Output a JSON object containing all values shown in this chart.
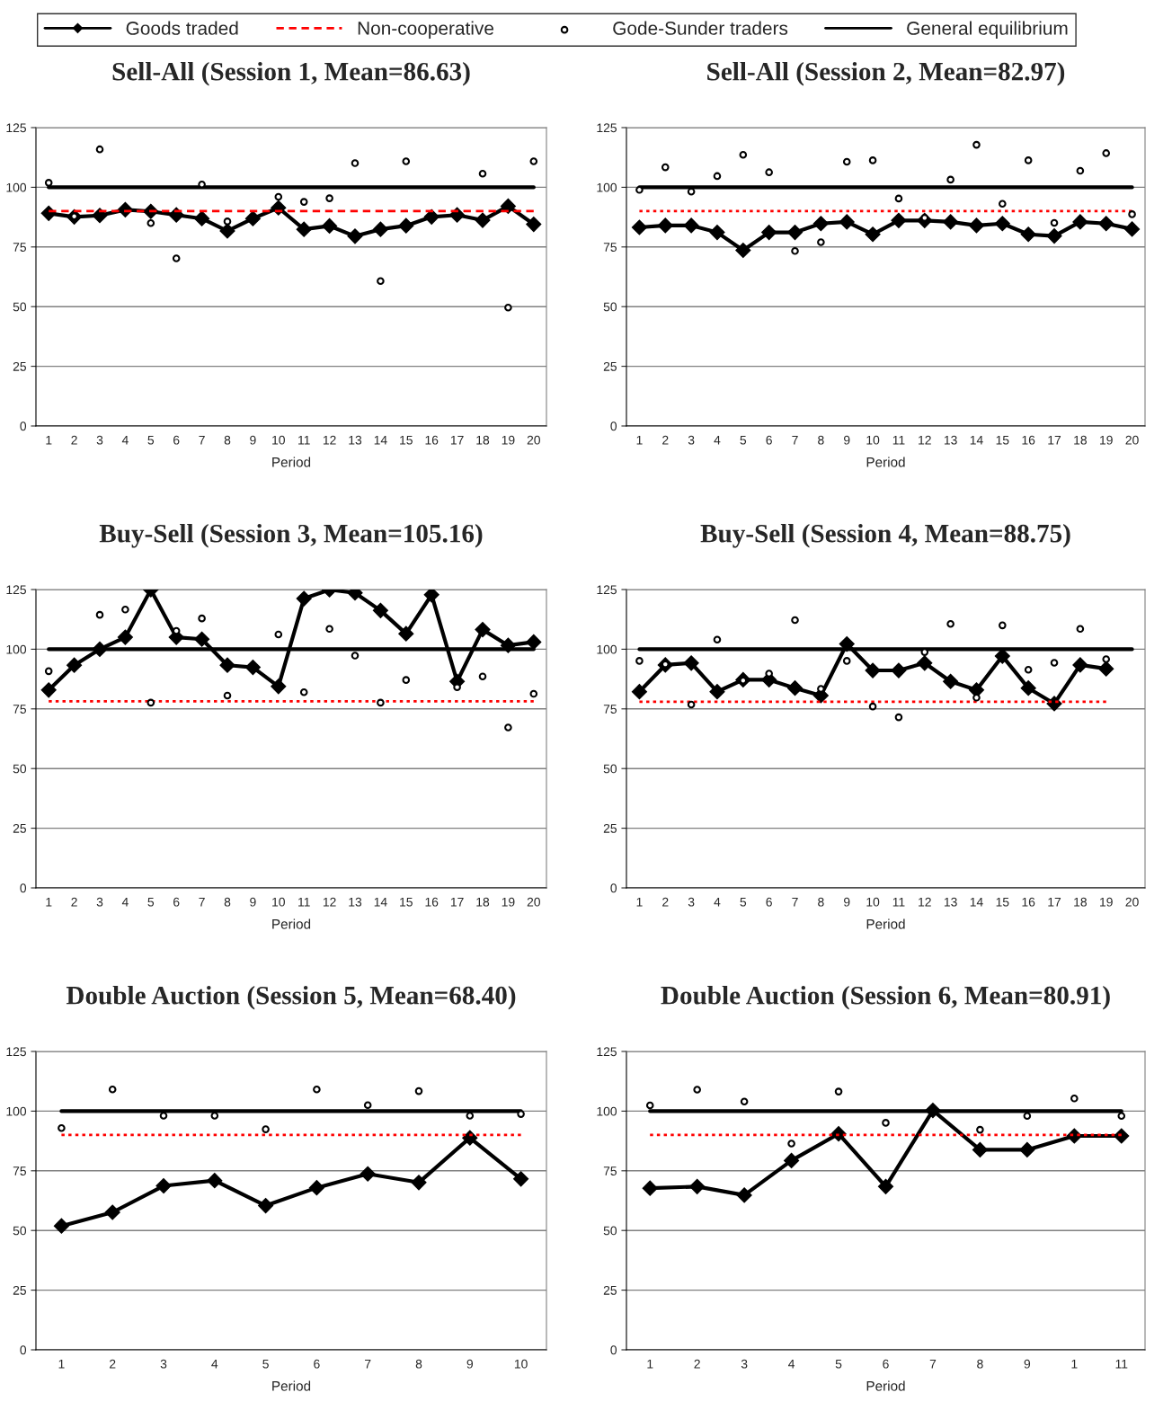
{
  "chart_data": [
    {
      "type": "line",
      "title": "Sell-All (Session 1, Mean=86.63)",
      "xlabel": "Period",
      "categories": [
        "1",
        "2",
        "3",
        "4",
        "5",
        "6",
        "7",
        "8",
        "9",
        "10",
        "11",
        "12",
        "13",
        "14",
        "15",
        "16",
        "17",
        "18",
        "19",
        "20"
      ],
      "ylim": [
        0,
        125
      ],
      "yticks": [
        0,
        25,
        50,
        75,
        100,
        125
      ],
      "grid": "y",
      "legend": "top",
      "series": [
        {
          "name": "Goods traded",
          "color": "#000000",
          "marker": "diamond",
          "line_style": "solid",
          "values": [
            89.1,
            87.6,
            88.2,
            90.6,
            89.9,
            88.4,
            86.9,
            81.7,
            86.9,
            91.4,
            82.4,
            83.8,
            79.5,
            82.4,
            83.9,
            87.6,
            88.4,
            86.2,
            92.1,
            84.5
          ]
        },
        {
          "name": "Non-cooperative",
          "color": "#ff0000",
          "marker": "none",
          "line_style": "dashed",
          "values": [
            90,
            90,
            90,
            90,
            90,
            90,
            90,
            90,
            90,
            90,
            90,
            90,
            90,
            90,
            90,
            90,
            90,
            90,
            90,
            90
          ]
        },
        {
          "name": "Gode-Sunder traders",
          "type": "scatter",
          "color": "#000000",
          "marker": "circle",
          "values": [
            101.9,
            87.8,
            115.9,
            null,
            85,
            70.2,
            101.2,
            85.7,
            null,
            96,
            93.9,
            95.4,
            110.1,
            60.7,
            110.9,
            null,
            null,
            105.7,
            49.6,
            110.9
          ]
        },
        {
          "name": "General equilibrium",
          "color": "#000000",
          "marker": "none",
          "line_style": "solid",
          "values": [
            100,
            100,
            100,
            100,
            100,
            100,
            100,
            100,
            100,
            100,
            100,
            100,
            100,
            100,
            100,
            100,
            100,
            100,
            100,
            100
          ]
        }
      ]
    },
    {
      "type": "line",
      "title": "Sell-All (Session 2, Mean=82.97)",
      "xlabel": "Period",
      "categories": [
        "1",
        "2",
        "3",
        "4",
        "5",
        "6",
        "7",
        "8",
        "9",
        "10",
        "11",
        "12",
        "13",
        "14",
        "15",
        "16",
        "17",
        "18",
        "19",
        "20"
      ],
      "ylim": [
        0,
        125
      ],
      "yticks": [
        0,
        25,
        50,
        75,
        100,
        125
      ],
      "grid": "y",
      "series": [
        {
          "type": "line",
          "color": "#000000",
          "marker": "diamond",
          "line_style": "solid",
          "values": [
            83.2,
            84,
            84,
            81.1,
            73.6,
            81.1,
            81.1,
            84.8,
            85.5,
            80.3,
            86.1,
            86.1,
            85.5,
            84,
            84.8,
            80.3,
            79.6,
            85.5,
            84.8,
            82.5
          ]
        },
        {
          "type": "line",
          "color": "#ff0000",
          "marker": "none",
          "line_style": "dotted",
          "values": [
            90,
            90,
            90,
            90,
            90,
            90,
            90,
            90,
            90,
            90,
            90,
            90,
            90,
            90,
            90,
            90,
            90,
            90,
            90,
            90
          ]
        },
        {
          "type": "scatter",
          "color": "#000000",
          "marker": "circle",
          "values": [
            98.9,
            108.4,
            98.2,
            104.7,
            113.6,
            106.3,
            73.3,
            77,
            110.7,
            111.3,
            95.3,
            87.2,
            103.2,
            117.8,
            93.1,
            111.3,
            85.1,
            106.9,
            114.3,
            88.7
          ]
        },
        {
          "type": "line",
          "color": "#000000",
          "marker": "none",
          "line_style": "solid",
          "values": [
            100,
            100,
            100,
            100,
            100,
            100,
            100,
            100,
            100,
            100,
            100,
            100,
            100,
            100,
            100,
            100,
            100,
            100,
            100,
            100
          ]
        }
      ]
    },
    {
      "type": "line",
      "title": "Buy-Sell (Session 3, Mean=105.16)",
      "xlabel": "Period",
      "categories": [
        "1",
        "2",
        "3",
        "4",
        "5",
        "6",
        "7",
        "8",
        "9",
        "10",
        "11",
        "12",
        "13",
        "14",
        "15",
        "16",
        "17",
        "18",
        "19",
        "20"
      ],
      "ylim": [
        0,
        125
      ],
      "yticks": [
        0,
        25,
        50,
        75,
        100,
        125
      ],
      "grid": "y",
      "series": [
        {
          "type": "line",
          "color": "#000000",
          "marker": "diamond",
          "line_style": "solid",
          "values": [
            82.9,
            93.3,
            100,
            105,
            124.9,
            105,
            104.2,
            93.3,
            92.4,
            84.4,
            121.2,
            124.9,
            123.6,
            116.2,
            106.5,
            122.8,
            86.5,
            108.2,
            101.6,
            103
          ]
        },
        {
          "type": "line",
          "color": "#ff0000",
          "marker": "none",
          "line_style": "dotted",
          "values": [
            78.2,
            78.2,
            78.2,
            78.2,
            78.2,
            78.2,
            78.2,
            78.2,
            78.2,
            78.2,
            78.2,
            78.2,
            78.2,
            78.2,
            78.2,
            78.2,
            78.2,
            78.2,
            78.2,
            78.2
          ]
        },
        {
          "type": "scatter",
          "color": "#000000",
          "marker": "circle",
          "values": [
            90.8,
            null,
            114.4,
            116.6,
            77.6,
            107.7,
            112.9,
            80.6,
            null,
            106.2,
            82,
            108.5,
            97.3,
            77.6,
            87.1,
            null,
            84.1,
            88.6,
            67.2,
            81.3
          ]
        },
        {
          "type": "line",
          "color": "#000000",
          "marker": "none",
          "line_style": "solid",
          "values": [
            100,
            100,
            100,
            100,
            100,
            100,
            100,
            100,
            100,
            100,
            100,
            100,
            100,
            100,
            100,
            100,
            100,
            100,
            100,
            100
          ]
        }
      ]
    },
    {
      "type": "line",
      "title": "Buy-Sell (Session 4, Mean=88.75)",
      "xlabel": "Period",
      "categories": [
        "1",
        "2",
        "3",
        "4",
        "5",
        "6",
        "7",
        "8",
        "9",
        "10",
        "11",
        "12",
        "13",
        "14",
        "15",
        "16",
        "17",
        "18",
        "19",
        "20"
      ],
      "ylim": [
        0,
        125
      ],
      "yticks": [
        0,
        25,
        50,
        75,
        100,
        125
      ],
      "grid": "y",
      "series": [
        {
          "type": "line",
          "color": "#000000",
          "marker": "diamond",
          "line_style": "solid",
          "values": [
            82.2,
            93.4,
            94.2,
            82.2,
            87.2,
            87.2,
            83.7,
            80.6,
            102.2,
            91.1,
            91.1,
            94.2,
            86.5,
            82.9,
            97.1,
            83.7,
            77.2,
            93.4,
            91.8,
            null
          ]
        },
        {
          "type": "line",
          "color": "#ff0000",
          "marker": "none",
          "line_style": "dotted",
          "values": [
            78,
            78,
            78,
            78,
            78,
            78,
            78,
            78,
            78,
            78,
            78,
            78,
            78,
            78,
            78,
            78,
            78,
            78,
            78,
            null
          ]
        },
        {
          "type": "scatter",
          "color": "#000000",
          "marker": "circle",
          "values": [
            95.1,
            93.7,
            76.8,
            104,
            86.9,
            89.8,
            112.2,
            83.4,
            95.1,
            76,
            71.5,
            98.8,
            110.6,
            79.7,
            110,
            91.4,
            94.3,
            108.5,
            95.8,
            null
          ]
        },
        {
          "type": "line",
          "color": "#000000",
          "marker": "none",
          "line_style": "solid",
          "values": [
            100,
            100,
            100,
            100,
            100,
            100,
            100,
            100,
            100,
            100,
            100,
            100,
            100,
            100,
            100,
            100,
            100,
            100,
            100,
            100
          ]
        }
      ]
    },
    {
      "type": "line",
      "title": "Double Auction (Session 5, Mean=68.40)",
      "xlabel": "Period",
      "categories": [
        "1",
        "2",
        "3",
        "4",
        "5",
        "6",
        "7",
        "8",
        "9",
        "10"
      ],
      "ylim": [
        0,
        125
      ],
      "yticks": [
        0,
        25,
        50,
        75,
        100,
        125
      ],
      "grid": "y",
      "series": [
        {
          "type": "line",
          "color": "#000000",
          "marker": "diamond",
          "line_style": "solid",
          "values": [
            51.9,
            57.6,
            68.7,
            70.9,
            60.4,
            67.9,
            73.7,
            70.1,
            88.8,
            71.6
          ]
        },
        {
          "type": "line",
          "color": "#ff0000",
          "marker": "none",
          "line_style": "dotted",
          "values": [
            90,
            90,
            90,
            90,
            90,
            90,
            90,
            90,
            90,
            90
          ]
        },
        {
          "type": "scatter",
          "color": "#000000",
          "marker": "circle",
          "values": [
            92.9,
            109.1,
            98.1,
            98.1,
            92.4,
            109.1,
            102.5,
            108.4,
            98.1,
            98.8
          ]
        },
        {
          "type": "line",
          "color": "#000000",
          "marker": "none",
          "line_style": "solid",
          "values": [
            100,
            100,
            100,
            100,
            100,
            100,
            100,
            100,
            100,
            100
          ]
        }
      ]
    },
    {
      "type": "line",
      "title": "Double Auction (Session 6, Mean=80.91)",
      "xlabel": "Period",
      "categories": [
        "1",
        "2",
        "3",
        "4",
        "5",
        "6",
        "7",
        "8",
        "9",
        "1",
        "11"
      ],
      "ylim": [
        0,
        125
      ],
      "yticks": [
        0,
        25,
        50,
        75,
        100,
        125
      ],
      "grid": "y",
      "series": [
        {
          "type": "line",
          "color": "#000000",
          "marker": "diamond",
          "line_style": "solid",
          "values": [
            67.7,
            68.4,
            64.8,
            79.3,
            90.5,
            68.4,
            100.3,
            83.8,
            83.8,
            89.6,
            89.6
          ]
        },
        {
          "type": "line",
          "color": "#ff0000",
          "marker": "none",
          "line_style": "dotted",
          "values": [
            90,
            90,
            90,
            90,
            90,
            90,
            90,
            90,
            90,
            90,
            90
          ]
        },
        {
          "type": "scatter",
          "color": "#000000",
          "marker": "circle",
          "values": [
            102.4,
            109,
            104,
            86.4,
            108.2,
            95.1,
            null,
            92.2,
            98,
            105.3,
            98
          ]
        },
        {
          "type": "line",
          "color": "#000000",
          "marker": "none",
          "line_style": "solid",
          "values": [
            100,
            100,
            100,
            100,
            100,
            100,
            100,
            100,
            100,
            100,
            100
          ]
        }
      ]
    }
  ]
}
